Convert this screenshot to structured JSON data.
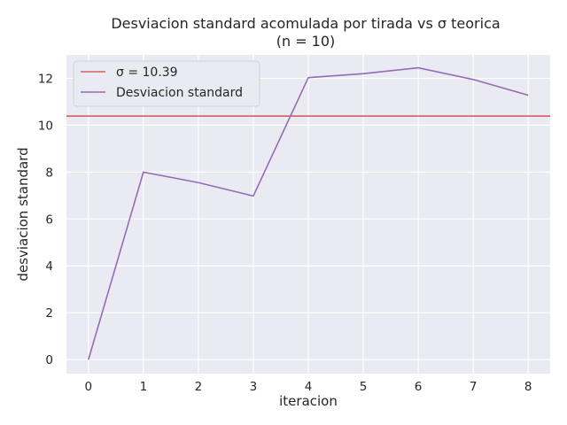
{
  "chart_data": {
    "type": "line",
    "title": "Desviacion standard acomulada por tirada vs σ teorica",
    "subtitle": "(n = 10)",
    "xlabel": "iteracion",
    "ylabel": "desviacion standard",
    "xlim": [
      -0.4,
      8.4
    ],
    "ylim": [
      -0.6,
      13.0
    ],
    "x_ticks": [
      0,
      1,
      2,
      3,
      4,
      5,
      6,
      7,
      8
    ],
    "y_ticks": [
      0,
      2,
      4,
      6,
      8,
      10,
      12
    ],
    "grid": true,
    "legend_position": "top-left",
    "reference_line": {
      "name": "σ = 10.39",
      "value": 10.39,
      "color": "#d65f5f"
    },
    "series": [
      {
        "name": "Desviacion standard",
        "color": "#956cb4",
        "x": [
          0,
          1,
          2,
          3,
          4,
          5,
          6,
          7,
          8
        ],
        "values": [
          0.0,
          8.0,
          7.55,
          6.98,
          12.03,
          12.2,
          12.45,
          11.95,
          11.28
        ]
      }
    ]
  }
}
